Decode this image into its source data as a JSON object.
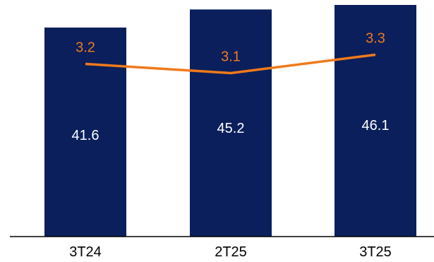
{
  "chart_data": {
    "type": "bar",
    "categories": [
      "3T24",
      "2T25",
      "3T25"
    ],
    "series": [
      {
        "type": "bar",
        "values": [
          41.6,
          45.2,
          46.1
        ],
        "labels": [
          "41.6",
          "45.2",
          "46.1"
        ],
        "color": "#0a1f5c",
        "label_color": "#ffffff"
      },
      {
        "type": "line",
        "values": [
          3.2,
          3.1,
          3.3
        ],
        "labels": [
          "3.2",
          "3.1",
          "3.3"
        ],
        "color": "#f07a1a",
        "label_color": "#f07a1a"
      }
    ],
    "grid": false,
    "legend": "none"
  }
}
